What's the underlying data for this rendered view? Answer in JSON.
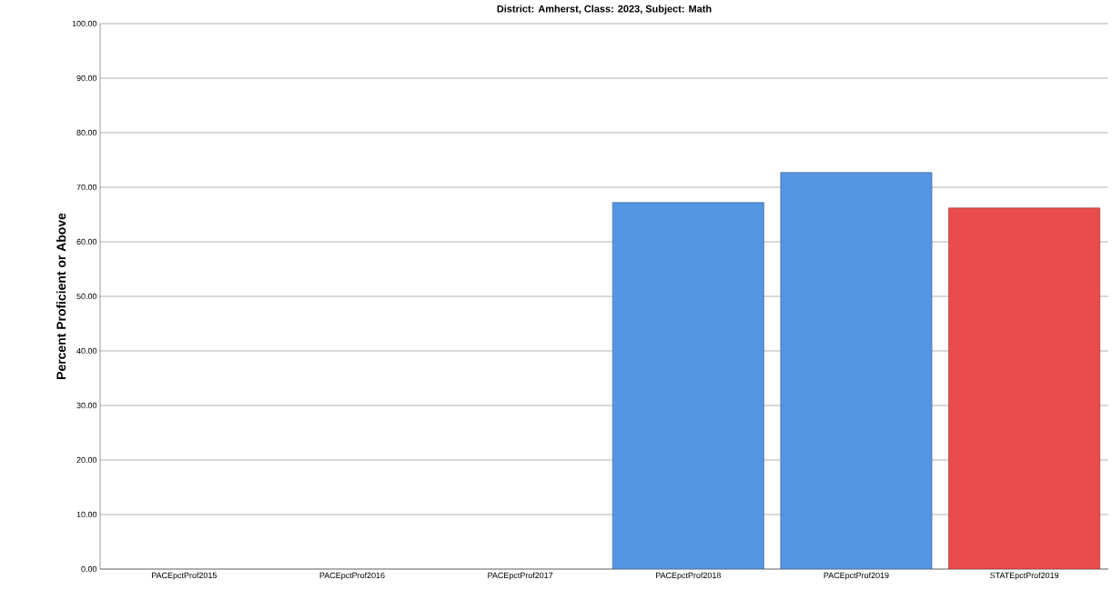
{
  "chart_data": {
    "type": "bar",
    "title": "District: Amherst, Class: 2023, Subject: Math",
    "ylabel": "Percent Proficient or Above",
    "categories": [
      "PACEpctProf2015",
      "PACEpctProf2016",
      "PACEpctProf2017",
      "PACEpctProf2018",
      "PACEpctProf2019",
      "STATEpctProf2019"
    ],
    "values": [
      null,
      null,
      null,
      67.2,
      72.7,
      66.2
    ],
    "colors": [
      "#5596e3",
      "#5596e3",
      "#5596e3",
      "#5596e3",
      "#5596e3",
      "#ea4b4b"
    ],
    "ylim": [
      0,
      100
    ],
    "yticks": [
      {
        "value": 0,
        "label": "0.00"
      },
      {
        "value": 10,
        "label": "10.00"
      },
      {
        "value": 20,
        "label": "20.00"
      },
      {
        "value": 30,
        "label": "30.00"
      },
      {
        "value": 40,
        "label": "40.00"
      },
      {
        "value": 50,
        "label": "50.00"
      },
      {
        "value": 60,
        "label": "60.00"
      },
      {
        "value": 70,
        "label": "70.00"
      },
      {
        "value": 80,
        "label": "80.00"
      },
      {
        "value": 90,
        "label": "90.00"
      },
      {
        "value": 100,
        "label": "100.00"
      }
    ],
    "grid": "y"
  }
}
